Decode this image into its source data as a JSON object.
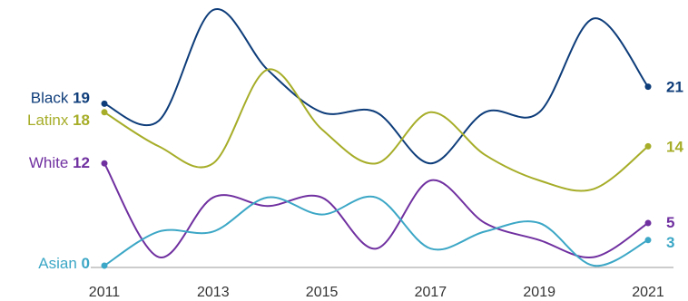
{
  "chart_data": {
    "type": "line",
    "title": "",
    "xlabel": "",
    "ylabel": "",
    "x": [
      2011,
      2012,
      2013,
      2014,
      2015,
      2016,
      2017,
      2018,
      2019,
      2020,
      2021
    ],
    "xticks": [
      "2011",
      "2013",
      "2015",
      "2017",
      "2019",
      "2021"
    ],
    "ylim": [
      0,
      30
    ],
    "grid": false,
    "legend": "direct labels at line ends",
    "series": [
      {
        "name": "Black",
        "color": "#0e3d7a",
        "values": [
          19,
          17,
          30,
          23,
          18,
          18,
          12,
          18,
          18,
          29,
          21
        ],
        "start_label": "19",
        "end_label": "21"
      },
      {
        "name": "Latinx",
        "color": "#a6ad28",
        "values": [
          18,
          14,
          12,
          23,
          16,
          12,
          18,
          13,
          10,
          9,
          14
        ],
        "start_label": "18",
        "end_label": "14"
      },
      {
        "name": "White",
        "color": "#7030a0",
        "values": [
          12,
          1,
          8,
          7,
          8,
          2,
          10,
          5,
          3,
          1,
          5
        ],
        "start_label": "12",
        "end_label": "5"
      },
      {
        "name": "Asian",
        "color": "#3ca7c6",
        "values": [
          0,
          4,
          4,
          8,
          6,
          8,
          2,
          4,
          5,
          0,
          3
        ],
        "start_label": "0",
        "end_label": "3"
      }
    ]
  }
}
